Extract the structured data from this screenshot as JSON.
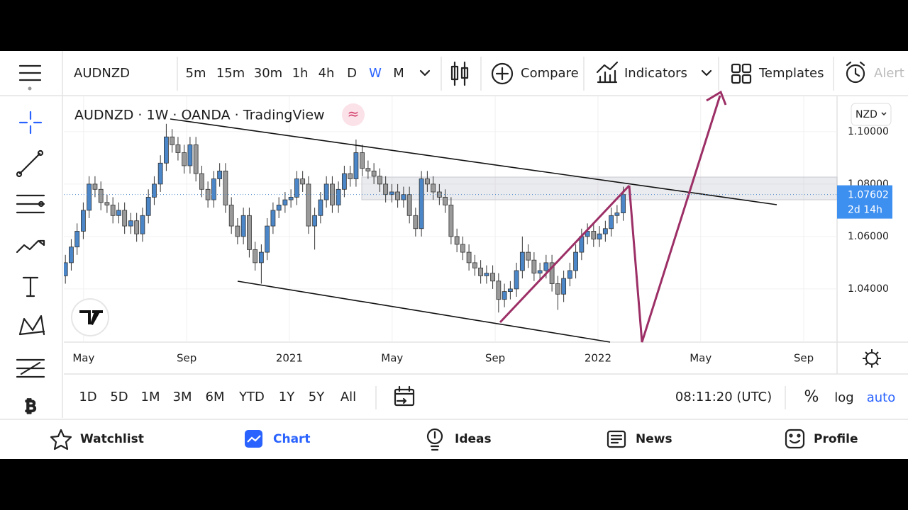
{
  "toolbar": {
    "symbol": "AUDNZD",
    "intervals": [
      "5m",
      "15m",
      "30m",
      "1h",
      "4h",
      "D",
      "W",
      "M"
    ],
    "active_interval": "W",
    "compare": "Compare",
    "indicators": "Indicators",
    "templates": "Templates",
    "alert": "Alert"
  },
  "chart_data": {
    "type": "candlestick",
    "title": "AUDNZD · 1W · OANDA · TradingView",
    "currency": "NZD",
    "up_color": "#4a86c8",
    "down_color": "#9a9a9a",
    "grid": true,
    "xlim": [
      2020.269,
      2022.775
    ],
    "ylim": [
      1.0197,
      1.1124
    ],
    "xticks": [
      {
        "value": 2020.333,
        "label": "May"
      },
      {
        "value": 2020.667,
        "label": "Sep"
      },
      2021,
      {
        "value": 2021.333,
        "label": "May"
      },
      {
        "value": 2021.667,
        "label": "Sep"
      },
      2022,
      {
        "value": 2022.333,
        "label": "May"
      },
      {
        "value": 2022.667,
        "label": "Sep"
      }
    ],
    "yticks": [
      {
        "value": 1.1,
        "label": "1.10000"
      },
      {
        "value": 1.08,
        "label": "1.08000"
      },
      {
        "value": 1.06,
        "label": "1.06000"
      },
      {
        "value": 1.04,
        "label": "1.04000"
      }
    ],
    "last_price": 1.07602,
    "countdown": "2d 14h",
    "x": [
      2020.274,
      2020.293,
      2020.312,
      2020.332,
      2020.351,
      2020.37,
      2020.389,
      2020.409,
      2020.428,
      2020.447,
      2020.466,
      2020.486,
      2020.505,
      2020.524,
      2020.543,
      2020.562,
      2020.582,
      2020.601,
      2020.62,
      2020.639,
      2020.659,
      2020.678,
      2020.697,
      2020.716,
      2020.736,
      2020.755,
      2020.774,
      2020.793,
      2020.812,
      2020.832,
      2020.851,
      2020.87,
      2020.889,
      2020.909,
      2020.928,
      2020.947,
      2020.966,
      2020.986,
      2021.005,
      2021.024,
      2021.043,
      2021.062,
      2021.082,
      2021.101,
      2021.12,
      2021.139,
      2021.159,
      2021.178,
      2021.197,
      2021.216,
      2021.236,
      2021.255,
      2021.274,
      2021.293,
      2021.312,
      2021.332,
      2021.351,
      2021.37,
      2021.389,
      2021.409,
      2021.428,
      2021.447,
      2021.466,
      2021.486,
      2021.505,
      2021.524,
      2021.543,
      2021.562,
      2021.582,
      2021.601,
      2021.62,
      2021.639,
      2021.659,
      2021.678,
      2021.697,
      2021.716,
      2021.736,
      2021.755,
      2021.774,
      2021.793,
      2021.812,
      2021.832,
      2021.851,
      2021.87,
      2021.889,
      2021.909,
      2021.928,
      2021.947,
      2021.966,
      2021.986,
      2022.005,
      2022.024,
      2022.043,
      2022.062,
      2022.082
    ],
    "open": [
      1.045,
      1.05,
      1.056,
      1.062,
      1.07,
      1.08,
      1.078,
      1.073,
      1.072,
      1.068,
      1.07,
      1.064,
      1.066,
      1.061,
      1.068,
      1.075,
      1.08,
      1.088,
      1.098,
      1.095,
      1.092,
      1.087,
      1.095,
      1.084,
      1.078,
      1.074,
      1.082,
      1.085,
      1.072,
      1.064,
      1.06,
      1.068,
      1.055,
      1.05,
      1.054,
      1.064,
      1.07,
      1.072,
      1.074,
      1.075,
      1.082,
      1.08,
      1.064,
      1.068,
      1.074,
      1.08,
      1.072,
      1.078,
      1.084,
      1.082,
      1.092,
      1.086,
      1.085,
      1.083,
      1.08,
      1.076,
      1.077,
      1.074,
      1.076,
      1.068,
      1.063,
      1.082,
      1.08,
      1.077,
      1.075,
      1.072,
      1.06,
      1.057,
      1.054,
      1.05,
      1.048,
      1.045,
      1.046,
      1.043,
      1.036,
      1.039,
      1.04,
      1.047,
      1.054,
      1.051,
      1.046,
      1.047,
      1.05,
      1.042,
      1.038,
      1.044,
      1.047,
      1.054,
      1.06,
      1.062,
      1.059,
      1.061,
      1.063,
      1.068,
      1.069
    ],
    "high": [
      1.053,
      1.059,
      1.065,
      1.073,
      1.083,
      1.083,
      1.081,
      1.076,
      1.075,
      1.073,
      1.073,
      1.069,
      1.069,
      1.071,
      1.078,
      1.083,
      1.091,
      1.103,
      1.101,
      1.098,
      1.095,
      1.098,
      1.098,
      1.087,
      1.081,
      1.085,
      1.088,
      1.088,
      1.075,
      1.067,
      1.071,
      1.071,
      1.058,
      1.057,
      1.067,
      1.073,
      1.075,
      1.077,
      1.078,
      1.085,
      1.085,
      1.083,
      1.071,
      1.077,
      1.083,
      1.083,
      1.081,
      1.087,
      1.087,
      1.097,
      1.095,
      1.089,
      1.088,
      1.086,
      1.083,
      1.08,
      1.08,
      1.079,
      1.079,
      1.071,
      1.085,
      1.085,
      1.083,
      1.08,
      1.078,
      1.075,
      1.063,
      1.06,
      1.057,
      1.053,
      1.051,
      1.049,
      1.049,
      1.046,
      1.042,
      1.043,
      1.05,
      1.06,
      1.057,
      1.054,
      1.05,
      1.053,
      1.053,
      1.045,
      1.047,
      1.05,
      1.057,
      1.063,
      1.065,
      1.065,
      1.064,
      1.066,
      1.071,
      1.072,
      1.079
    ],
    "low": [
      1.042,
      1.047,
      1.053,
      1.059,
      1.067,
      1.075,
      1.07,
      1.069,
      1.065,
      1.065,
      1.061,
      1.061,
      1.058,
      1.058,
      1.065,
      1.072,
      1.077,
      1.085,
      1.092,
      1.089,
      1.084,
      1.084,
      1.081,
      1.075,
      1.071,
      1.071,
      1.079,
      1.069,
      1.061,
      1.057,
      1.057,
      1.052,
      1.047,
      1.042,
      1.051,
      1.061,
      1.067,
      1.069,
      1.071,
      1.072,
      1.077,
      1.061,
      1.055,
      1.065,
      1.071,
      1.069,
      1.069,
      1.075,
      1.079,
      1.079,
      1.083,
      1.082,
      1.08,
      1.077,
      1.073,
      1.073,
      1.071,
      1.071,
      1.065,
      1.06,
      1.06,
      1.077,
      1.074,
      1.072,
      1.069,
      1.057,
      1.054,
      1.051,
      1.047,
      1.045,
      1.042,
      1.042,
      1.04,
      1.031,
      1.033,
      1.036,
      1.037,
      1.044,
      1.048,
      1.043,
      1.043,
      1.044,
      1.039,
      1.032,
      1.035,
      1.041,
      1.044,
      1.051,
      1.057,
      1.056,
      1.056,
      1.058,
      1.06,
      1.065,
      1.066
    ],
    "close": [
      1.05,
      1.056,
      1.062,
      1.07,
      1.08,
      1.078,
      1.073,
      1.072,
      1.068,
      1.07,
      1.064,
      1.066,
      1.061,
      1.068,
      1.075,
      1.08,
      1.088,
      1.098,
      1.095,
      1.092,
      1.087,
      1.095,
      1.084,
      1.078,
      1.074,
      1.082,
      1.085,
      1.072,
      1.064,
      1.06,
      1.068,
      1.055,
      1.05,
      1.054,
      1.064,
      1.07,
      1.072,
      1.074,
      1.075,
      1.082,
      1.08,
      1.064,
      1.068,
      1.074,
      1.08,
      1.072,
      1.078,
      1.084,
      1.082,
      1.092,
      1.086,
      1.085,
      1.083,
      1.08,
      1.076,
      1.077,
      1.074,
      1.076,
      1.068,
      1.063,
      1.082,
      1.08,
      1.077,
      1.075,
      1.072,
      1.06,
      1.057,
      1.054,
      1.05,
      1.048,
      1.045,
      1.046,
      1.043,
      1.036,
      1.039,
      1.04,
      1.047,
      1.054,
      1.051,
      1.046,
      1.047,
      1.05,
      1.042,
      1.038,
      1.044,
      1.047,
      1.054,
      1.06,
      1.062,
      1.059,
      1.061,
      1.063,
      1.068,
      1.069,
      1.076
    ]
  },
  "range_bar": {
    "ranges": [
      "1D",
      "5D",
      "1M",
      "3M",
      "6M",
      "YTD",
      "1Y",
      "5Y",
      "All"
    ],
    "time": "08:11:20 (UTC)",
    "percent": "%",
    "log": "log",
    "auto": "auto"
  },
  "nav": {
    "items": [
      "Watchlist",
      "Chart",
      "Ideas",
      "News",
      "Profile"
    ],
    "active": "Chart"
  }
}
